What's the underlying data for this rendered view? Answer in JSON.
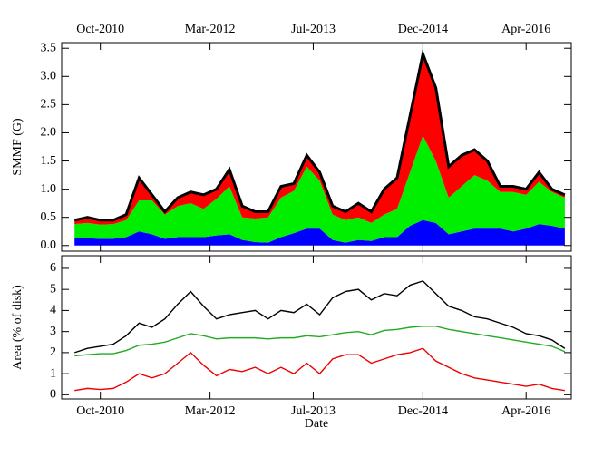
{
  "chart_data": [
    {
      "type": "area",
      "stacked": true,
      "ylabel": "SMMF (G)",
      "xaxis_position": "top",
      "stack_outline_color": "#000000",
      "x": [
        "2010-06",
        "2010-08",
        "2010-10",
        "2010-12",
        "2011-02",
        "2011-04",
        "2011-06",
        "2011-08",
        "2011-10",
        "2011-12",
        "2012-02",
        "2012-04",
        "2012-06",
        "2012-08",
        "2012-10",
        "2012-12",
        "2013-02",
        "2013-04",
        "2013-06",
        "2013-08",
        "2013-10",
        "2013-12",
        "2014-02",
        "2014-04",
        "2014-06",
        "2014-08",
        "2014-10",
        "2014-12",
        "2015-02",
        "2015-04",
        "2015-06",
        "2015-08",
        "2015-10",
        "2015-12",
        "2016-02",
        "2016-04",
        "2016-06",
        "2016-08",
        "2016-10"
      ],
      "xlim": [
        "2010-04",
        "2016-11"
      ],
      "xticks": [
        {
          "value": "2010-10",
          "label": "Oct-2010"
        },
        {
          "value": "2012-03",
          "label": "Mar-2012"
        },
        {
          "value": "2013-07",
          "label": "Jul-2013"
        },
        {
          "value": "2014-12",
          "label": "Dec-2014"
        },
        {
          "value": "2016-04",
          "label": "Apr-2016"
        }
      ],
      "ylim": [
        -0.1,
        3.6
      ],
      "yticks": [
        {
          "value": 0,
          "label": "0.0"
        },
        0.5,
        {
          "value": 1,
          "label": "1.0"
        },
        1.5,
        {
          "value": 2,
          "label": "2.0"
        },
        2.5,
        {
          "value": 3,
          "label": "3.0"
        },
        3.5
      ],
      "series": [
        {
          "color": "#0000ff",
          "values": [
            0.13,
            0.13,
            0.12,
            0.12,
            0.15,
            0.25,
            0.2,
            0.12,
            0.15,
            0.15,
            0.15,
            0.18,
            0.2,
            0.1,
            0.06,
            0.05,
            0.15,
            0.22,
            0.3,
            0.3,
            0.1,
            0.05,
            0.1,
            0.08,
            0.15,
            0.15,
            0.35,
            0.45,
            0.4,
            0.2,
            0.25,
            0.3,
            0.3,
            0.3,
            0.25,
            0.3,
            0.38,
            0.35,
            0.3
          ]
        },
        {
          "color": "#00ee00",
          "values": [
            0.25,
            0.27,
            0.25,
            0.26,
            0.3,
            0.55,
            0.6,
            0.43,
            0.55,
            0.6,
            0.5,
            0.65,
            0.85,
            0.4,
            0.42,
            0.45,
            0.7,
            0.75,
            1.1,
            0.85,
            0.45,
            0.4,
            0.4,
            0.32,
            0.4,
            0.5,
            0.95,
            1.5,
            1.1,
            0.65,
            0.8,
            0.95,
            0.85,
            0.65,
            0.7,
            0.6,
            0.75,
            0.6,
            0.55
          ]
        },
        {
          "color": "#ff0000",
          "values": [
            0.07,
            0.1,
            0.08,
            0.07,
            0.1,
            0.4,
            0.1,
            0.05,
            0.15,
            0.2,
            0.25,
            0.17,
            0.3,
            0.2,
            0.12,
            0.1,
            0.2,
            0.13,
            0.2,
            0.15,
            0.15,
            0.15,
            0.25,
            0.2,
            0.45,
            0.55,
            1.0,
            1.45,
            1.3,
            0.55,
            0.55,
            0.45,
            0.35,
            0.1,
            0.1,
            0.1,
            0.17,
            0.05,
            0.05
          ]
        }
      ]
    },
    {
      "type": "line",
      "ylabel": "Area (% of disk)",
      "xlabel": "Date",
      "xaxis_position": "bottom",
      "x": [
        "2010-06",
        "2010-08",
        "2010-10",
        "2010-12",
        "2011-02",
        "2011-04",
        "2011-06",
        "2011-08",
        "2011-10",
        "2011-12",
        "2012-02",
        "2012-04",
        "2012-06",
        "2012-08",
        "2012-10",
        "2012-12",
        "2013-02",
        "2013-04",
        "2013-06",
        "2013-08",
        "2013-10",
        "2013-12",
        "2014-02",
        "2014-04",
        "2014-06",
        "2014-08",
        "2014-10",
        "2014-12",
        "2015-02",
        "2015-04",
        "2015-06",
        "2015-08",
        "2015-10",
        "2015-12",
        "2016-02",
        "2016-04",
        "2016-06",
        "2016-08",
        "2016-10"
      ],
      "xlim": [
        "2010-04",
        "2016-11"
      ],
      "xticks": [
        {
          "value": "2010-10",
          "label": "Oct-2010"
        },
        {
          "value": "2012-03",
          "label": "Mar-2012"
        },
        {
          "value": "2013-07",
          "label": "Jul-2013"
        },
        {
          "value": "2014-12",
          "label": "Dec-2014"
        },
        {
          "value": "2016-04",
          "label": "Apr-2016"
        }
      ],
      "ylim": [
        -0.2,
        6.6
      ],
      "yticks": [
        0,
        1,
        2,
        3,
        4,
        5,
        6
      ],
      "series": [
        {
          "color": "#000000",
          "values": [
            2.0,
            2.2,
            2.3,
            2.4,
            2.8,
            3.4,
            3.2,
            3.6,
            4.3,
            4.9,
            4.2,
            3.6,
            3.8,
            3.9,
            4.0,
            3.6,
            4.0,
            3.9,
            4.3,
            3.8,
            4.6,
            4.9,
            5.0,
            4.5,
            4.8,
            4.7,
            5.2,
            5.4,
            4.8,
            4.2,
            4.0,
            3.7,
            3.6,
            3.4,
            3.2,
            2.9,
            2.8,
            2.6,
            2.2
          ]
        },
        {
          "color": "#22aa22",
          "values": [
            1.85,
            1.9,
            1.95,
            1.95,
            2.1,
            2.35,
            2.4,
            2.5,
            2.7,
            2.9,
            2.8,
            2.65,
            2.7,
            2.7,
            2.7,
            2.65,
            2.7,
            2.7,
            2.8,
            2.75,
            2.85,
            2.95,
            3.0,
            2.85,
            3.05,
            3.1,
            3.2,
            3.25,
            3.25,
            3.1,
            3.0,
            2.9,
            2.8,
            2.7,
            2.6,
            2.5,
            2.4,
            2.3,
            2.05
          ]
        },
        {
          "color": "#ee0000",
          "values": [
            0.2,
            0.3,
            0.25,
            0.3,
            0.6,
            1.0,
            0.8,
            1.0,
            1.5,
            2.0,
            1.4,
            0.9,
            1.2,
            1.1,
            1.3,
            1.0,
            1.3,
            1.0,
            1.5,
            1.0,
            1.7,
            1.9,
            1.9,
            1.5,
            1.7,
            1.9,
            2.0,
            2.2,
            1.6,
            1.3,
            1.0,
            0.8,
            0.7,
            0.6,
            0.5,
            0.4,
            0.5,
            0.3,
            0.2
          ]
        }
      ]
    }
  ]
}
